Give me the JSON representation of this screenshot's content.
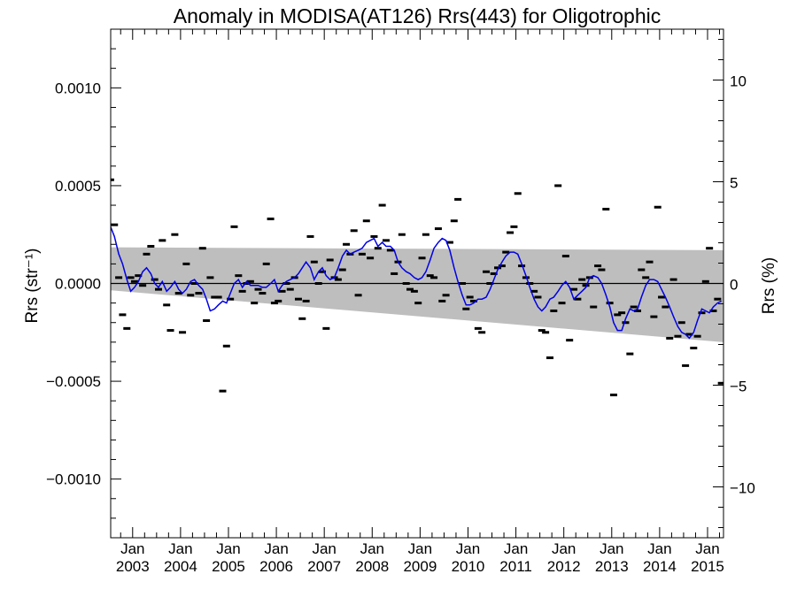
{
  "chart_data": {
    "type": "scatter",
    "title": "Anomaly in MODISA(AT126) Rrs(443) for Oligotrophic",
    "ylabel_left": "Rrs (str⁻¹)",
    "ylabel_right": "Rrs (%)",
    "xlabel": "",
    "x_range": [
      2002.542,
      2015.333
    ],
    "y_left_range": [
      -0.0013,
      0.0013
    ],
    "y_right_range": [
      -12.5,
      12.5
    ],
    "left_ticks": [
      {
        "value": 0.001,
        "label": "0.0010"
      },
      {
        "value": 0.0005,
        "label": "0.0005"
      },
      {
        "value": 0.0,
        "label": "0.0000"
      },
      {
        "value": -0.0005,
        "label": "−0.0005"
      },
      {
        "value": -0.001,
        "label": "−0.0010"
      }
    ],
    "right_ticks": [
      {
        "value": 10,
        "label": "10"
      },
      {
        "value": 5,
        "label": "5"
      },
      {
        "value": 0,
        "label": "0"
      },
      {
        "value": -5,
        "label": "−5"
      },
      {
        "value": -10,
        "label": "−10"
      }
    ],
    "x_ticks": [
      {
        "value": 2003.0,
        "month": "Jan",
        "year": "2003"
      },
      {
        "value": 2004.0,
        "month": "Jan",
        "year": "2004"
      },
      {
        "value": 2005.0,
        "month": "Jan",
        "year": "2005"
      },
      {
        "value": 2006.0,
        "month": "Jan",
        "year": "2006"
      },
      {
        "value": 2007.0,
        "month": "Jan",
        "year": "2007"
      },
      {
        "value": 2008.0,
        "month": "Jan",
        "year": "2008"
      },
      {
        "value": 2009.0,
        "month": "Jan",
        "year": "2009"
      },
      {
        "value": 2010.0,
        "month": "Jan",
        "year": "2010"
      },
      {
        "value": 2011.0,
        "month": "Jan",
        "year": "2011"
      },
      {
        "value": 2012.0,
        "month": "Jan",
        "year": "2012"
      },
      {
        "value": 2013.0,
        "month": "Jan",
        "year": "2013"
      },
      {
        "value": 2014.0,
        "month": "Jan",
        "year": "2014"
      },
      {
        "value": 2015.0,
        "month": "Jan",
        "year": "2015"
      }
    ],
    "band": {
      "start": {
        "x": 2002.542,
        "upper": 0.000185,
        "lower": -3.5e-05
      },
      "end": {
        "x": 2015.333,
        "upper": 0.00017,
        "lower": -0.0003
      }
    },
    "zero_line": 0.0,
    "monthly_anomalies": [
      [
        2002.54,
        0.00053
      ],
      [
        2002.62,
        0.0003
      ],
      [
        2002.71,
        3e-05
      ],
      [
        2002.79,
        -0.00016
      ],
      [
        2002.88,
        -0.00023
      ],
      [
        2002.96,
        3e-05
      ],
      [
        2003.04,
        1e-05
      ],
      [
        2003.12,
        4e-05
      ],
      [
        2003.21,
        -1e-05
      ],
      [
        2003.29,
        0.00015
      ],
      [
        2003.38,
        0.00019
      ],
      [
        2003.46,
        2e-05
      ],
      [
        2003.54,
        -3e-05
      ],
      [
        2003.62,
        0.00022
      ],
      [
        2003.71,
        -0.00011
      ],
      [
        2003.79,
        -0.00024
      ],
      [
        2003.88,
        0.00025
      ],
      [
        2003.96,
        -5e-05
      ],
      [
        2004.04,
        -0.00025
      ],
      [
        2004.12,
        0.0001
      ],
      [
        2004.21,
        -6e-05
      ],
      [
        2004.29,
        0.0
      ],
      [
        2004.38,
        -5e-05
      ],
      [
        2004.46,
        0.00018
      ],
      [
        2004.54,
        -0.00019
      ],
      [
        2004.62,
        3e-05
      ],
      [
        2004.71,
        -7e-05
      ],
      [
        2004.79,
        -7e-05
      ],
      [
        2004.88,
        -0.00055
      ],
      [
        2004.96,
        -0.00032
      ],
      [
        2005.04,
        -8e-05
      ],
      [
        2005.12,
        0.00029
      ],
      [
        2005.21,
        4e-05
      ],
      [
        2005.29,
        -4e-05
      ],
      [
        2005.38,
        0.0
      ],
      [
        2005.46,
        1e-05
      ],
      [
        2005.54,
        -0.0001
      ],
      [
        2005.62,
        -3e-05
      ],
      [
        2005.71,
        -5e-05
      ],
      [
        2005.79,
        0.0001
      ],
      [
        2005.88,
        0.00033
      ],
      [
        2005.96,
        -0.0001
      ],
      [
        2006.04,
        -9e-05
      ],
      [
        2006.12,
        -4e-05
      ],
      [
        2006.21,
        0.0
      ],
      [
        2006.29,
        -3e-05
      ],
      [
        2006.38,
        3e-05
      ],
      [
        2006.46,
        -8e-05
      ],
      [
        2006.54,
        -0.00018
      ],
      [
        2006.62,
        -9e-05
      ],
      [
        2006.71,
        0.00024
      ],
      [
        2006.79,
        0.00011
      ],
      [
        2006.88,
        0.0
      ],
      [
        2006.96,
        6e-05
      ],
      [
        2007.04,
        -0.00023
      ],
      [
        2007.12,
        0.00012
      ],
      [
        2007.21,
        3e-05
      ],
      [
        2007.29,
        2e-05
      ],
      [
        2007.38,
        7e-05
      ],
      [
        2007.46,
        0.0002
      ],
      [
        2007.54,
        0.00015
      ],
      [
        2007.62,
        0.00027
      ],
      [
        2007.71,
        -6e-05
      ],
      [
        2007.79,
        0.00015
      ],
      [
        2007.88,
        0.00032
      ],
      [
        2007.96,
        0.00013
      ],
      [
        2008.04,
        0.00024
      ],
      [
        2008.12,
        0.00018
      ],
      [
        2008.21,
        0.0004
      ],
      [
        2008.29,
        0.00022
      ],
      [
        2008.38,
        0.00017
      ],
      [
        2008.46,
        5e-05
      ],
      [
        2008.54,
        0.00011
      ],
      [
        2008.62,
        0.00025
      ],
      [
        2008.71,
        0.0
      ],
      [
        2008.79,
        -3e-05
      ],
      [
        2008.88,
        -4e-05
      ],
      [
        2008.96,
        -0.0001
      ],
      [
        2009.04,
        0.00013
      ],
      [
        2009.12,
        0.00025
      ],
      [
        2009.21,
        4e-05
      ],
      [
        2009.29,
        3e-05
      ],
      [
        2009.38,
        0.00028
      ],
      [
        2009.46,
        -9e-05
      ],
      [
        2009.54,
        -6e-05
      ],
      [
        2009.62,
        0.00021
      ],
      [
        2009.71,
        0.00032
      ],
      [
        2009.79,
        0.00043
      ],
      [
        2009.88,
        0.0
      ],
      [
        2009.96,
        -0.00013
      ],
      [
        2010.04,
        -7e-05
      ],
      [
        2010.12,
        -9e-05
      ],
      [
        2010.21,
        -0.00023
      ],
      [
        2010.29,
        -0.00025
      ],
      [
        2010.38,
        6e-05
      ],
      [
        2010.46,
        0.0
      ],
      [
        2010.54,
        5e-05
      ],
      [
        2010.62,
        8e-05
      ],
      [
        2010.71,
        9e-05
      ],
      [
        2010.79,
        0.00016
      ],
      [
        2010.88,
        0.00026
      ],
      [
        2010.96,
        0.00029
      ],
      [
        2011.04,
        0.00046
      ],
      [
        2011.12,
        9e-05
      ],
      [
        2011.21,
        3e-05
      ],
      [
        2011.29,
        -0.0
      ],
      [
        2011.38,
        -4e-05
      ],
      [
        2011.46,
        -7e-05
      ],
      [
        2011.54,
        -0.00024
      ],
      [
        2011.62,
        -0.00025
      ],
      [
        2011.71,
        -0.00038
      ],
      [
        2011.79,
        -0.00014
      ],
      [
        2011.88,
        0.0005
      ],
      [
        2011.96,
        -0.0001
      ],
      [
        2012.04,
        0.00014
      ],
      [
        2012.12,
        -0.00029
      ],
      [
        2012.21,
        -3e-05
      ],
      [
        2012.29,
        -8e-05
      ],
      [
        2012.38,
        2e-05
      ],
      [
        2012.46,
        -1e-05
      ],
      [
        2012.54,
        3e-05
      ],
      [
        2012.62,
        -0.00012
      ],
      [
        2012.71,
        9e-05
      ],
      [
        2012.79,
        7e-05
      ],
      [
        2012.88,
        0.00038
      ],
      [
        2012.96,
        -0.0001
      ],
      [
        2013.04,
        -0.00057
      ],
      [
        2013.12,
        -0.00016
      ],
      [
        2013.21,
        -0.00015
      ],
      [
        2013.29,
        -0.0002
      ],
      [
        2013.38,
        -0.00036
      ],
      [
        2013.46,
        -0.00012
      ],
      [
        2013.54,
        -0.00014
      ],
      [
        2013.62,
        7e-05
      ],
      [
        2013.71,
        3e-05
      ],
      [
        2013.79,
        0.00011
      ],
      [
        2013.88,
        -0.00017
      ],
      [
        2013.96,
        0.00039
      ],
      [
        2014.04,
        -7e-05
      ],
      [
        2014.12,
        -0.00012
      ],
      [
        2014.21,
        -0.00028
      ],
      [
        2014.29,
        2e-05
      ],
      [
        2014.38,
        -0.00027
      ],
      [
        2014.46,
        -0.0002
      ],
      [
        2014.54,
        -0.00042
      ],
      [
        2014.62,
        -0.00026
      ],
      [
        2014.71,
        -0.00033
      ],
      [
        2014.79,
        -0.00027
      ],
      [
        2014.88,
        -0.00015
      ],
      [
        2014.96,
        1e-05
      ],
      [
        2015.04,
        0.00018
      ],
      [
        2015.12,
        -0.00014
      ],
      [
        2015.21,
        -8e-05
      ],
      [
        2015.29,
        -0.00051
      ]
    ],
    "running_mean": {
      "color": "#0000e6",
      "points": [
        [
          2002.54,
          0.00029
        ],
        [
          2002.62,
          0.00024
        ],
        [
          2002.71,
          0.00015
        ],
        [
          2002.79,
          0.0001
        ],
        [
          2002.88,
          2e-05
        ],
        [
          2002.96,
          -4e-05
        ],
        [
          2003.04,
          -2e-05
        ],
        [
          2003.12,
          1e-05
        ],
        [
          2003.21,
          6e-05
        ],
        [
          2003.29,
          8e-05
        ],
        [
          2003.38,
          5e-05
        ],
        [
          2003.46,
          0.0
        ],
        [
          2003.54,
          -2e-05
        ],
        [
          2003.62,
          1e-05
        ],
        [
          2003.71,
          -4e-05
        ],
        [
          2003.79,
          -2e-05
        ],
        [
          2003.88,
          1e-05
        ],
        [
          2003.96,
          -3e-05
        ],
        [
          2004.04,
          -5e-05
        ],
        [
          2004.12,
          -3e-05
        ],
        [
          2004.21,
          1e-05
        ],
        [
          2004.29,
          2e-05
        ],
        [
          2004.38,
          -1e-05
        ],
        [
          2004.46,
          -3e-05
        ],
        [
          2004.54,
          -8e-05
        ],
        [
          2004.62,
          -0.00014
        ],
        [
          2004.71,
          -0.00013
        ],
        [
          2004.79,
          -0.00011
        ],
        [
          2004.88,
          -9e-05
        ],
        [
          2004.96,
          -0.0001
        ],
        [
          2005.04,
          -5e-05
        ],
        [
          2005.12,
          0.0
        ],
        [
          2005.21,
          2e-05
        ],
        [
          2005.29,
          -2e-05
        ],
        [
          2005.38,
          1e-05
        ],
        [
          2005.46,
          -1e-05
        ],
        [
          2005.54,
          -1e-05
        ],
        [
          2005.62,
          -1e-05
        ],
        [
          2005.71,
          -2e-05
        ],
        [
          2005.79,
          -2e-05
        ],
        [
          2005.88,
          0.0
        ],
        [
          2005.96,
          2e-05
        ],
        [
          2006.04,
          -4e-05
        ],
        [
          2006.12,
          -1e-05
        ],
        [
          2006.21,
          1e-05
        ],
        [
          2006.29,
          2e-05
        ],
        [
          2006.38,
          3e-05
        ],
        [
          2006.46,
          5e-05
        ],
        [
          2006.54,
          8e-05
        ],
        [
          2006.62,
          0.00011
        ],
        [
          2006.71,
          8e-05
        ],
        [
          2006.79,
          2e-05
        ],
        [
          2006.88,
          6e-05
        ],
        [
          2006.96,
          8e-05
        ],
        [
          2007.04,
          4e-05
        ],
        [
          2007.12,
          2e-05
        ],
        [
          2007.21,
          3e-05
        ],
        [
          2007.29,
          8e-05
        ],
        [
          2007.38,
          0.00014
        ],
        [
          2007.46,
          0.00017
        ],
        [
          2007.54,
          0.00015
        ],
        [
          2007.62,
          0.00016
        ],
        [
          2007.71,
          0.00017
        ],
        [
          2007.79,
          0.00018
        ],
        [
          2007.88,
          0.00021
        ],
        [
          2007.96,
          0.00022
        ],
        [
          2008.04,
          0.00023
        ],
        [
          2008.12,
          0.00019
        ],
        [
          2008.21,
          0.00021
        ],
        [
          2008.29,
          0.00019
        ],
        [
          2008.38,
          0.00019
        ],
        [
          2008.46,
          0.00017
        ],
        [
          2008.54,
          0.00011
        ],
        [
          2008.62,
          8e-05
        ],
        [
          2008.71,
          6e-05
        ],
        [
          2008.79,
          5e-05
        ],
        [
          2008.88,
          3e-05
        ],
        [
          2008.96,
          2e-05
        ],
        [
          2009.04,
          3e-05
        ],
        [
          2009.12,
          6e-05
        ],
        [
          2009.21,
          0.00012
        ],
        [
          2009.29,
          0.00018
        ],
        [
          2009.38,
          0.00021
        ],
        [
          2009.46,
          0.00023
        ],
        [
          2009.54,
          0.00022
        ],
        [
          2009.62,
          0.00017
        ],
        [
          2009.71,
          8e-05
        ],
        [
          2009.79,
          1e-05
        ],
        [
          2009.88,
          -6e-05
        ],
        [
          2009.96,
          -0.00011
        ],
        [
          2010.04,
          -0.00011
        ],
        [
          2010.12,
          -0.0001
        ],
        [
          2010.21,
          -8e-05
        ],
        [
          2010.29,
          -8e-05
        ],
        [
          2010.38,
          -7e-05
        ],
        [
          2010.46,
          -3e-05
        ],
        [
          2010.54,
          2e-05
        ],
        [
          2010.62,
          7e-05
        ],
        [
          2010.71,
          0.00011
        ],
        [
          2010.79,
          0.00014
        ],
        [
          2010.88,
          0.00016
        ],
        [
          2010.96,
          0.00016
        ],
        [
          2011.04,
          0.00015
        ],
        [
          2011.12,
          0.0001
        ],
        [
          2011.21,
          4e-05
        ],
        [
          2011.29,
          -2e-05
        ],
        [
          2011.38,
          -8e-05
        ],
        [
          2011.46,
          -0.00012
        ],
        [
          2011.54,
          -0.00014
        ],
        [
          2011.62,
          -0.00012
        ],
        [
          2011.71,
          -8e-05
        ],
        [
          2011.79,
          -7e-05
        ],
        [
          2011.88,
          -4e-05
        ],
        [
          2011.96,
          -1e-05
        ],
        [
          2012.04,
          1e-05
        ],
        [
          2012.12,
          -2e-05
        ],
        [
          2012.21,
          -8e-05
        ],
        [
          2012.29,
          -6e-05
        ],
        [
          2012.38,
          -4e-05
        ],
        [
          2012.46,
          -2e-05
        ],
        [
          2012.54,
          3e-05
        ],
        [
          2012.62,
          4e-05
        ],
        [
          2012.71,
          3e-05
        ],
        [
          2012.79,
          0.0
        ],
        [
          2012.88,
          -6e-05
        ],
        [
          2012.96,
          -0.00012
        ],
        [
          2013.04,
          -0.0002
        ],
        [
          2013.12,
          -0.00024
        ],
        [
          2013.21,
          -0.00024
        ],
        [
          2013.29,
          -0.00018
        ],
        [
          2013.38,
          -0.00013
        ],
        [
          2013.46,
          -0.00014
        ],
        [
          2013.54,
          -0.00013
        ],
        [
          2013.62,
          -7e-05
        ],
        [
          2013.71,
          -1e-05
        ],
        [
          2013.79,
          2e-05
        ],
        [
          2013.88,
          2e-05
        ],
        [
          2013.96,
          1e-05
        ],
        [
          2014.04,
          -3e-05
        ],
        [
          2014.12,
          -7e-05
        ],
        [
          2014.21,
          -0.00012
        ],
        [
          2014.29,
          -0.00017
        ],
        [
          2014.38,
          -0.00022
        ],
        [
          2014.46,
          -0.00025
        ],
        [
          2014.54,
          -0.00026
        ],
        [
          2014.62,
          -0.00028
        ],
        [
          2014.71,
          -0.00025
        ],
        [
          2014.79,
          -0.00019
        ],
        [
          2014.88,
          -0.00013
        ],
        [
          2014.96,
          -0.00014
        ],
        [
          2015.04,
          -0.00015
        ],
        [
          2015.12,
          -0.00012
        ],
        [
          2015.21,
          -0.0001
        ],
        [
          2015.29,
          -9e-05
        ]
      ]
    },
    "marker_color": "#000000",
    "band_color": "#bebebe",
    "grid": false,
    "legend": "none"
  }
}
